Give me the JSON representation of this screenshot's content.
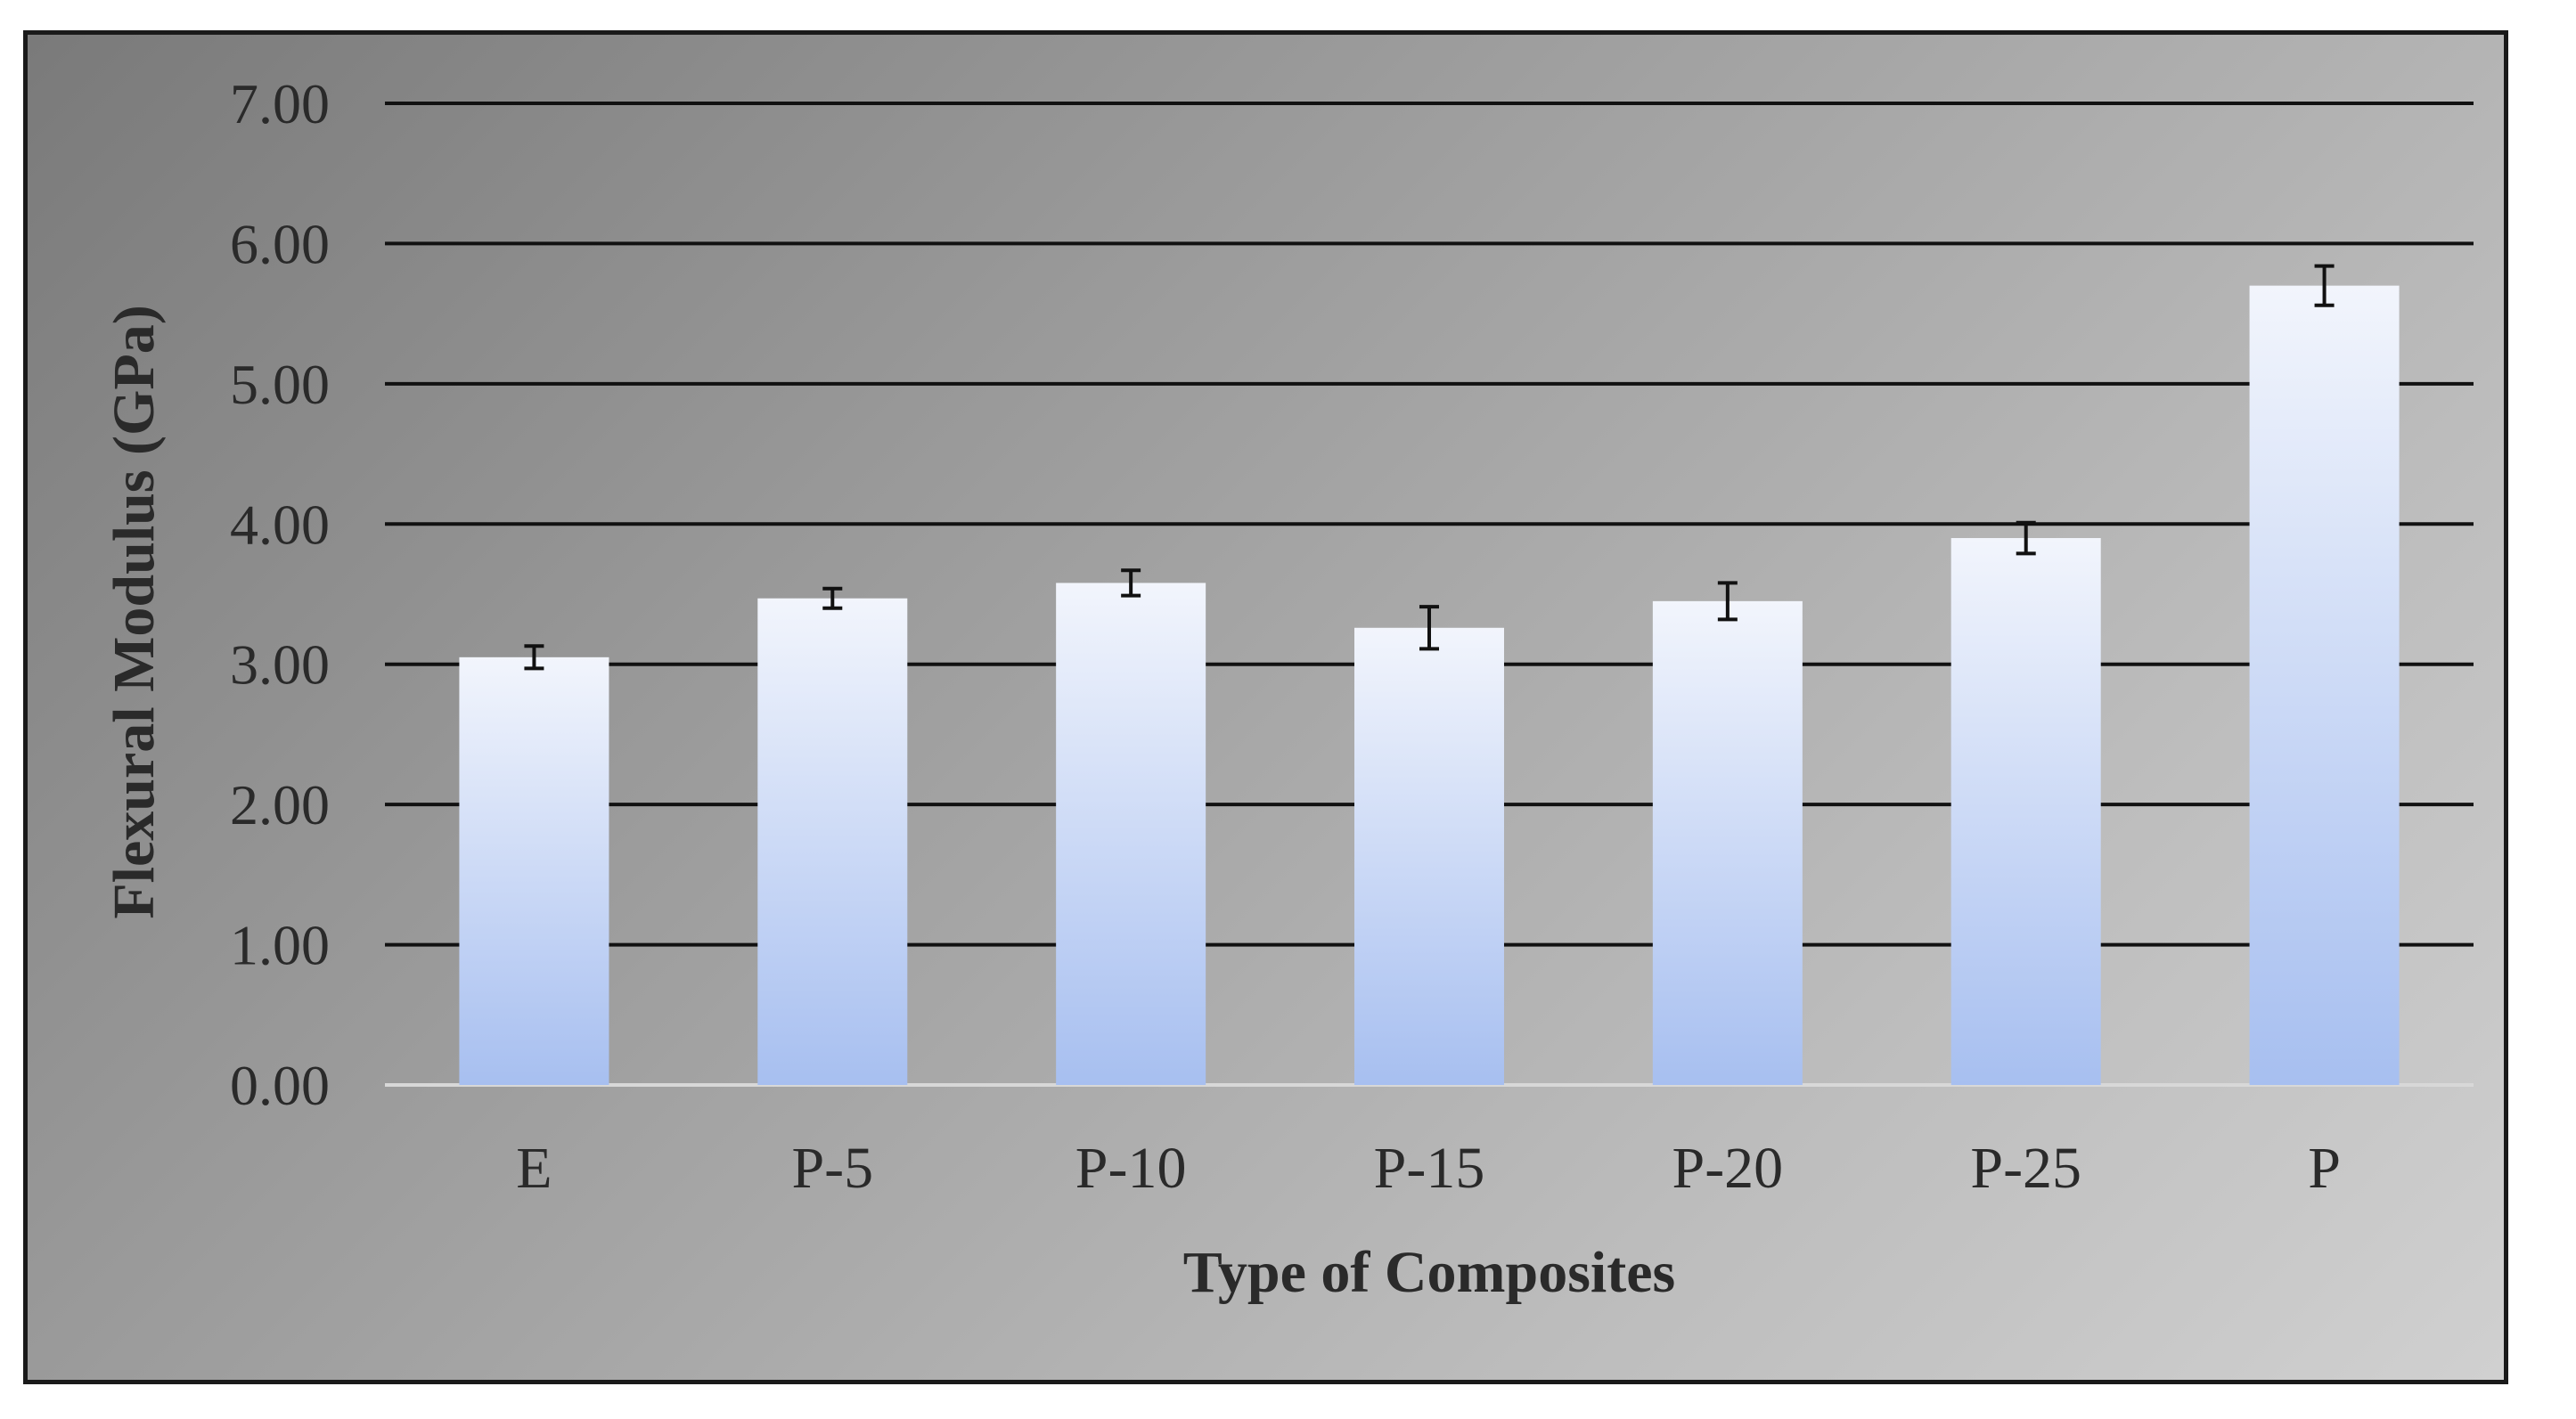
{
  "chart_data": {
    "type": "bar",
    "title": "",
    "xlabel": "Type of Composites",
    "ylabel": "Flexural Modulus (GPa)",
    "categories": [
      "E",
      "P-5",
      "P-10",
      "P-15",
      "P-20",
      "P-25",
      "P"
    ],
    "values": [
      3.05,
      3.47,
      3.58,
      3.26,
      3.45,
      3.9,
      5.7
    ],
    "error": [
      0.08,
      0.07,
      0.09,
      0.15,
      0.13,
      0.11,
      0.14
    ],
    "ylim": [
      0,
      7
    ],
    "yticks": [
      "0.00",
      "1.00",
      "2.00",
      "3.00",
      "4.00",
      "5.00",
      "6.00",
      "7.00"
    ],
    "grid": true,
    "legend": "none",
    "colors": {
      "bar_top": "#f2f5fc",
      "bar_bottom": "#a7bff0",
      "gridline": "#111111",
      "background": "#a8a8a8"
    }
  }
}
